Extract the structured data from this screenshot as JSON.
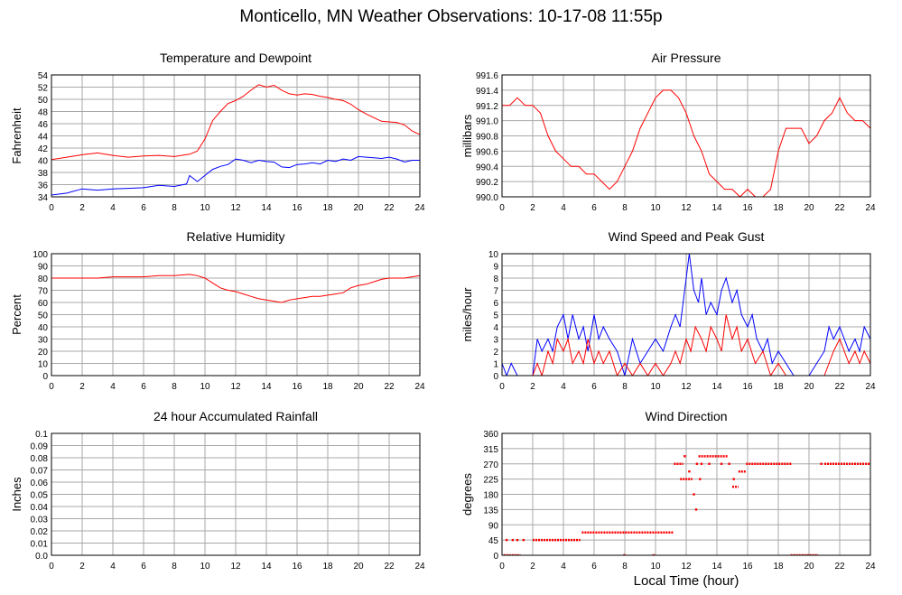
{
  "page": {
    "title": "Monticello, MN Weather Observations: 10-17-08 11:55p",
    "shared_xlabel": "Local Time (hour)"
  },
  "chart_data": [
    {
      "id": "temp",
      "type": "line",
      "title": "Temperature and Dewpoint",
      "xlabel": "",
      "ylabel": "Fahrenheit",
      "xlim": [
        0,
        24
      ],
      "ylim": [
        34,
        54
      ],
      "xticks": [
        0,
        2,
        4,
        6,
        8,
        10,
        12,
        14,
        16,
        18,
        20,
        22,
        24
      ],
      "yticks": [
        34,
        36,
        38,
        40,
        42,
        44,
        46,
        48,
        50,
        52,
        54
      ],
      "ytick_decimals": 0,
      "grid": true,
      "series": [
        {
          "color": "#ff0000",
          "x": [
            0,
            1,
            2,
            3,
            4,
            5,
            6,
            7,
            8,
            9,
            9.5,
            10,
            10.5,
            11,
            11.5,
            12,
            12.5,
            13,
            13.5,
            14,
            14.5,
            15,
            15.5,
            16,
            16.5,
            17,
            17.5,
            18,
            18.5,
            19,
            19.5,
            20,
            20.5,
            21,
            21.5,
            22,
            22.5,
            23,
            23.5,
            24
          ],
          "y": [
            40.1,
            40.5,
            40.9,
            41.2,
            40.8,
            40.5,
            40.7,
            40.8,
            40.6,
            41.0,
            41.5,
            43.5,
            46.5,
            48.0,
            49.3,
            49.8,
            50.5,
            51.5,
            52.4,
            52.0,
            52.3,
            51.5,
            50.9,
            50.7,
            50.9,
            50.8,
            50.5,
            50.3,
            50.0,
            49.8,
            49.2,
            48.3,
            47.6,
            47.0,
            46.4,
            46.3,
            46.2,
            45.8,
            44.8,
            44.2
          ]
        },
        {
          "color": "#0000ff",
          "x": [
            0,
            1,
            2,
            3,
            4,
            5,
            6,
            7,
            8,
            8.8,
            9,
            9.5,
            10,
            10.5,
            11,
            11.5,
            12,
            12.5,
            13,
            13.5,
            14,
            14.5,
            15,
            15.5,
            16,
            16.5,
            17,
            17.5,
            18,
            18.5,
            19,
            19.5,
            20,
            20.5,
            21,
            21.5,
            22,
            22.5,
            23,
            23.5,
            24
          ],
          "y": [
            34.3,
            34.6,
            35.3,
            35.1,
            35.3,
            35.4,
            35.5,
            35.9,
            35.7,
            36.1,
            37.5,
            36.5,
            37.5,
            38.5,
            39.0,
            39.3,
            40.2,
            40.0,
            39.6,
            40.0,
            39.8,
            39.7,
            38.9,
            38.8,
            39.3,
            39.4,
            39.6,
            39.4,
            40.0,
            39.8,
            40.2,
            40.0,
            40.6,
            40.5,
            40.4,
            40.3,
            40.5,
            40.2,
            39.7,
            40.0,
            40.0
          ]
        }
      ]
    },
    {
      "id": "pressure",
      "type": "line",
      "title": "Air Pressure",
      "xlabel": "",
      "ylabel": "millibars",
      "xlim": [
        0,
        24
      ],
      "ylim": [
        990.0,
        991.6
      ],
      "xticks": [
        0,
        2,
        4,
        6,
        8,
        10,
        12,
        14,
        16,
        18,
        20,
        22,
        24
      ],
      "yticks": [
        990.0,
        990.2,
        990.4,
        990.6,
        990.8,
        991.0,
        991.2,
        991.4,
        991.6
      ],
      "ytick_decimals": 1,
      "grid": true,
      "series": [
        {
          "color": "#ff0000",
          "x": [
            0,
            0.5,
            1,
            1.5,
            2,
            2.5,
            3,
            3.5,
            4,
            4.5,
            5,
            5.5,
            6,
            6.5,
            7,
            7.5,
            8,
            8.5,
            9,
            9.5,
            10,
            10.5,
            11,
            11.5,
            12,
            12.5,
            13,
            13.5,
            14,
            14.5,
            15,
            15.5,
            16,
            16.5,
            17,
            17.5,
            18,
            18.5,
            19,
            19.5,
            20,
            20.5,
            21,
            21.5,
            22,
            22.5,
            23,
            23.5,
            24
          ],
          "y": [
            991.2,
            991.2,
            991.3,
            991.2,
            991.2,
            991.1,
            990.8,
            990.6,
            990.5,
            990.4,
            990.4,
            990.3,
            990.3,
            990.2,
            990.1,
            990.2,
            990.4,
            990.6,
            990.9,
            991.1,
            991.3,
            991.4,
            991.4,
            991.3,
            991.1,
            990.8,
            990.6,
            990.3,
            990.2,
            990.1,
            990.1,
            990.0,
            990.1,
            990.0,
            990.0,
            990.1,
            990.6,
            990.9,
            990.9,
            990.9,
            990.7,
            990.8,
            991.0,
            991.1,
            991.3,
            991.1,
            991.0,
            991.0,
            990.9
          ]
        }
      ]
    },
    {
      "id": "humidity",
      "type": "line",
      "title": "Relative Humidity",
      "xlabel": "",
      "ylabel": "Percent",
      "xlim": [
        0,
        24
      ],
      "ylim": [
        0,
        100
      ],
      "xticks": [
        0,
        2,
        4,
        6,
        8,
        10,
        12,
        14,
        16,
        18,
        20,
        22,
        24
      ],
      "yticks": [
        0,
        10,
        20,
        30,
        40,
        50,
        60,
        70,
        80,
        90,
        100
      ],
      "ytick_decimals": 0,
      "grid": true,
      "series": [
        {
          "color": "#ff0000",
          "x": [
            0,
            1,
            2,
            3,
            4,
            5,
            6,
            7,
            8,
            9,
            9.5,
            10,
            10.5,
            11,
            11.5,
            12,
            12.5,
            13,
            13.5,
            14,
            14.5,
            15,
            15.5,
            16,
            16.5,
            17,
            17.5,
            18,
            18.5,
            19,
            19.5,
            20,
            20.5,
            21,
            21.5,
            22,
            22.5,
            23,
            23.5,
            24
          ],
          "y": [
            80,
            80,
            80,
            80,
            81,
            81,
            81,
            82,
            82,
            83,
            82,
            80,
            76,
            72,
            70,
            69,
            67,
            65,
            63,
            62,
            61,
            60,
            62,
            63,
            64,
            65,
            65,
            66,
            67,
            68,
            72,
            74,
            75,
            77,
            79,
            80,
            80,
            80,
            81,
            82
          ]
        }
      ]
    },
    {
      "id": "wind",
      "type": "line",
      "title": "Wind Speed and Peak Gust",
      "xlabel": "",
      "ylabel": "miles/hour",
      "xlim": [
        0,
        24
      ],
      "ylim": [
        0,
        10
      ],
      "xticks": [
        0,
        2,
        4,
        6,
        8,
        10,
        12,
        14,
        16,
        18,
        20,
        22,
        24
      ],
      "yticks": [
        0,
        1,
        2,
        3,
        4,
        5,
        6,
        7,
        8,
        9,
        10
      ],
      "ytick_decimals": 0,
      "grid": true,
      "series": [
        {
          "color": "#0000ff",
          "x": [
            0,
            0.3,
            0.6,
            1,
            1.5,
            2,
            2.3,
            2.6,
            3,
            3.3,
            3.6,
            4,
            4.3,
            4.6,
            5,
            5.3,
            5.6,
            6,
            6.3,
            6.6,
            7,
            7.5,
            8,
            8.5,
            9,
            9.5,
            10,
            10.5,
            11,
            11.3,
            11.6,
            12,
            12.2,
            12.5,
            12.8,
            13,
            13.3,
            13.6,
            14,
            14.3,
            14.6,
            15,
            15.3,
            15.6,
            16,
            16.3,
            16.6,
            17,
            17.3,
            17.6,
            18,
            18.5,
            19,
            19.5,
            20,
            20.5,
            21,
            21.3,
            21.6,
            22,
            22.3,
            22.6,
            23,
            23.3,
            23.6,
            24
          ],
          "y": [
            1,
            0,
            1,
            0,
            0,
            0,
            3,
            2,
            3,
            2,
            4,
            5,
            3,
            5,
            3,
            4,
            2,
            5,
            3,
            4,
            3,
            2,
            0,
            3,
            1,
            2,
            3,
            2,
            4,
            5,
            4,
            8,
            10,
            7,
            6,
            8,
            5,
            6,
            5,
            7,
            8,
            6,
            7,
            5,
            4,
            5,
            3,
            2,
            3,
            1,
            2,
            1,
            0,
            0,
            0,
            1,
            2,
            4,
            3,
            4,
            3,
            2,
            3,
            2,
            4,
            3
          ]
        },
        {
          "color": "#ff0000",
          "x": [
            0,
            0.5,
            1,
            1.5,
            2,
            2.3,
            2.6,
            3,
            3.3,
            3.6,
            4,
            4.3,
            4.6,
            5,
            5.3,
            5.6,
            6,
            6.3,
            6.6,
            7,
            7.5,
            8,
            8.5,
            9,
            9.5,
            10,
            10.5,
            11,
            11.3,
            11.6,
            12,
            12.3,
            12.6,
            13,
            13.3,
            13.6,
            14,
            14.3,
            14.6,
            15,
            15.3,
            15.6,
            16,
            16.5,
            17,
            17.5,
            18,
            18.5,
            19,
            19.5,
            20,
            20.5,
            21,
            21.3,
            21.6,
            22,
            22.3,
            22.6,
            23,
            23.3,
            23.6,
            24
          ],
          "y": [
            0,
            0,
            0,
            0,
            0,
            1,
            0,
            2,
            1,
            3,
            2,
            3,
            1,
            2,
            1,
            3,
            1,
            2,
            1,
            2,
            0,
            1,
            0,
            1,
            0,
            1,
            0,
            1,
            2,
            1,
            3,
            2,
            4,
            3,
            2,
            4,
            3,
            2,
            5,
            3,
            4,
            2,
            3,
            1,
            2,
            0,
            1,
            0,
            0,
            0,
            0,
            0,
            0,
            1,
            2,
            3,
            2,
            1,
            2,
            1,
            2,
            1
          ]
        }
      ]
    },
    {
      "id": "rain",
      "type": "line",
      "title": "24 hour Accumulated Rainfall",
      "xlabel": "",
      "ylabel": "Inches",
      "xlim": [
        0,
        24
      ],
      "ylim": [
        0,
        0.1
      ],
      "xticks": [
        0,
        2,
        4,
        6,
        8,
        10,
        12,
        14,
        16,
        18,
        20,
        22,
        24
      ],
      "yticks": [
        0.0,
        0.01,
        0.02,
        0.03,
        0.04,
        0.05,
        0.06,
        0.07,
        0.08,
        0.09,
        0.1
      ],
      "ytick_decimals": -1,
      "grid": true,
      "series": [
        {
          "color": "#ff0000",
          "x": [
            0,
            24
          ],
          "y": [
            0,
            0
          ]
        }
      ]
    },
    {
      "id": "direction",
      "type": "scatter",
      "title": "Wind Direction",
      "xlabel": "Local Time (hour)",
      "ylabel": "degrees",
      "xlim": [
        0,
        24
      ],
      "ylim": [
        0,
        360
      ],
      "xticks": [
        0,
        2,
        4,
        6,
        8,
        10,
        12,
        14,
        16,
        18,
        20,
        22,
        24
      ],
      "yticks": [
        0,
        45,
        90,
        135,
        180,
        225,
        270,
        315,
        360
      ],
      "ytick_decimals": 0,
      "grid": true,
      "segments": [
        {
          "x": [
            0.1,
            1.2
          ],
          "y": 0
        },
        {
          "x": [
            2.0,
            5.1
          ],
          "y": 45
        },
        {
          "x": [
            5.2,
            11.2
          ],
          "y": 67.5
        },
        {
          "x": [
            11.2,
            11.8
          ],
          "y": 270
        },
        {
          "x": [
            11.6,
            12.4
          ],
          "y": 225
        },
        {
          "x": [
            12.8,
            14.7
          ],
          "y": 292.5
        },
        {
          "x": [
            15.0,
            15.4
          ],
          "y": 202.5
        },
        {
          "x": [
            15.4,
            15.9
          ],
          "y": 247.5
        },
        {
          "x": [
            15.9,
            18.9
          ],
          "y": 270
        },
        {
          "x": [
            18.8,
            20.6
          ],
          "y": 0
        },
        {
          "x": [
            21.0,
            24.0
          ],
          "y": 270
        },
        {
          "x": [
            7.9,
            8.1
          ],
          "y": 0
        },
        {
          "x": [
            9.8,
            10.0
          ],
          "y": 0
        }
      ],
      "points": [
        {
          "x": 0.3,
          "y": 45
        },
        {
          "x": 0.7,
          "y": 45
        },
        {
          "x": 1.0,
          "y": 45
        },
        {
          "x": 1.4,
          "y": 45
        },
        {
          "x": 12.2,
          "y": 247.5
        },
        {
          "x": 12.5,
          "y": 180
        },
        {
          "x": 12.65,
          "y": 135
        },
        {
          "x": 12.7,
          "y": 270
        },
        {
          "x": 13.0,
          "y": 270
        },
        {
          "x": 13.5,
          "y": 270
        },
        {
          "x": 12.9,
          "y": 225
        },
        {
          "x": 14.3,
          "y": 270
        },
        {
          "x": 14.8,
          "y": 270
        },
        {
          "x": 15.1,
          "y": 225
        },
        {
          "x": 20.8,
          "y": 270
        },
        {
          "x": 11.9,
          "y": 292.5
        }
      ],
      "color": "#ff0000"
    }
  ]
}
